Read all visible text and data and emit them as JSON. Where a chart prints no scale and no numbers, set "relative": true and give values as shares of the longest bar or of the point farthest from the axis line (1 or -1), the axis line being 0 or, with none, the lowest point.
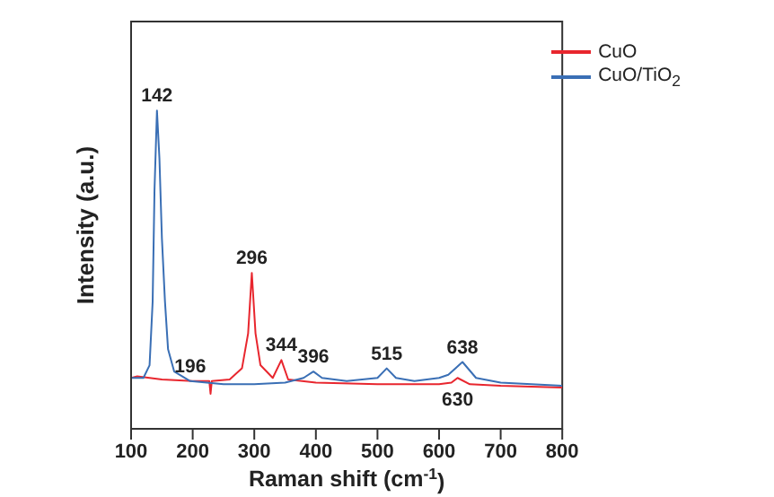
{
  "chart_data": {
    "type": "line",
    "relative": true,
    "xlabel": "Raman shift (cm$^{-1}$)",
    "ylabel": "Intensity (a.u.)",
    "xlim": [
      100,
      800
    ],
    "xticks": [
      100,
      200,
      300,
      400,
      500,
      600,
      700,
      800
    ],
    "legend": "top right",
    "grid": false,
    "marker": "none",
    "series": [
      {
        "name": "CuO",
        "color": "#e8262e",
        "x": [
          100,
          110,
          150,
          200,
          227,
          229,
          231,
          260,
          280,
          290,
          296,
          302,
          310,
          330,
          344,
          355,
          400,
          500,
          600,
          620,
          630,
          650,
          700,
          800
        ],
        "values": [
          0.16,
          0.165,
          0.155,
          0.15,
          0.15,
          0.11,
          0.15,
          0.155,
          0.19,
          0.3,
          0.49,
          0.3,
          0.2,
          0.16,
          0.216,
          0.155,
          0.145,
          0.14,
          0.14,
          0.145,
          0.16,
          0.14,
          0.135,
          0.13
        ]
      },
      {
        "name": "CuO/TiO$_{2}$",
        "color": "#3a6fb5",
        "x": [
          100,
          120,
          130,
          135,
          138,
          142,
          146,
          150,
          155,
          160,
          170,
          196,
          250,
          300,
          350,
          380,
          396,
          410,
          450,
          500,
          515,
          530,
          560,
          600,
          615,
          638,
          660,
          700,
          800
        ],
        "values": [
          0.16,
          0.16,
          0.2,
          0.4,
          0.75,
          1,
          0.85,
          0.6,
          0.4,
          0.25,
          0.18,
          0.15,
          0.14,
          0.14,
          0.145,
          0.16,
          0.18,
          0.16,
          0.15,
          0.16,
          0.19,
          0.16,
          0.15,
          0.16,
          0.17,
          0.21,
          0.16,
          0.145,
          0.135
        ]
      }
    ],
    "annotations": [
      {
        "text": "142",
        "x": 142,
        "y": 1
      },
      {
        "text": "196",
        "x": 196,
        "y": 0.15
      },
      {
        "text": "296",
        "x": 296,
        "y": 0.49
      },
      {
        "text": "344",
        "x": 344,
        "y": 0.216
      },
      {
        "text": "396",
        "x": 396,
        "y": 0.18
      },
      {
        "text": "515",
        "x": 515,
        "y": 0.19
      },
      {
        "text": "638",
        "x": 638,
        "y": 0.21
      },
      {
        "text": "630",
        "x": 630,
        "y": 0.16
      }
    ]
  }
}
